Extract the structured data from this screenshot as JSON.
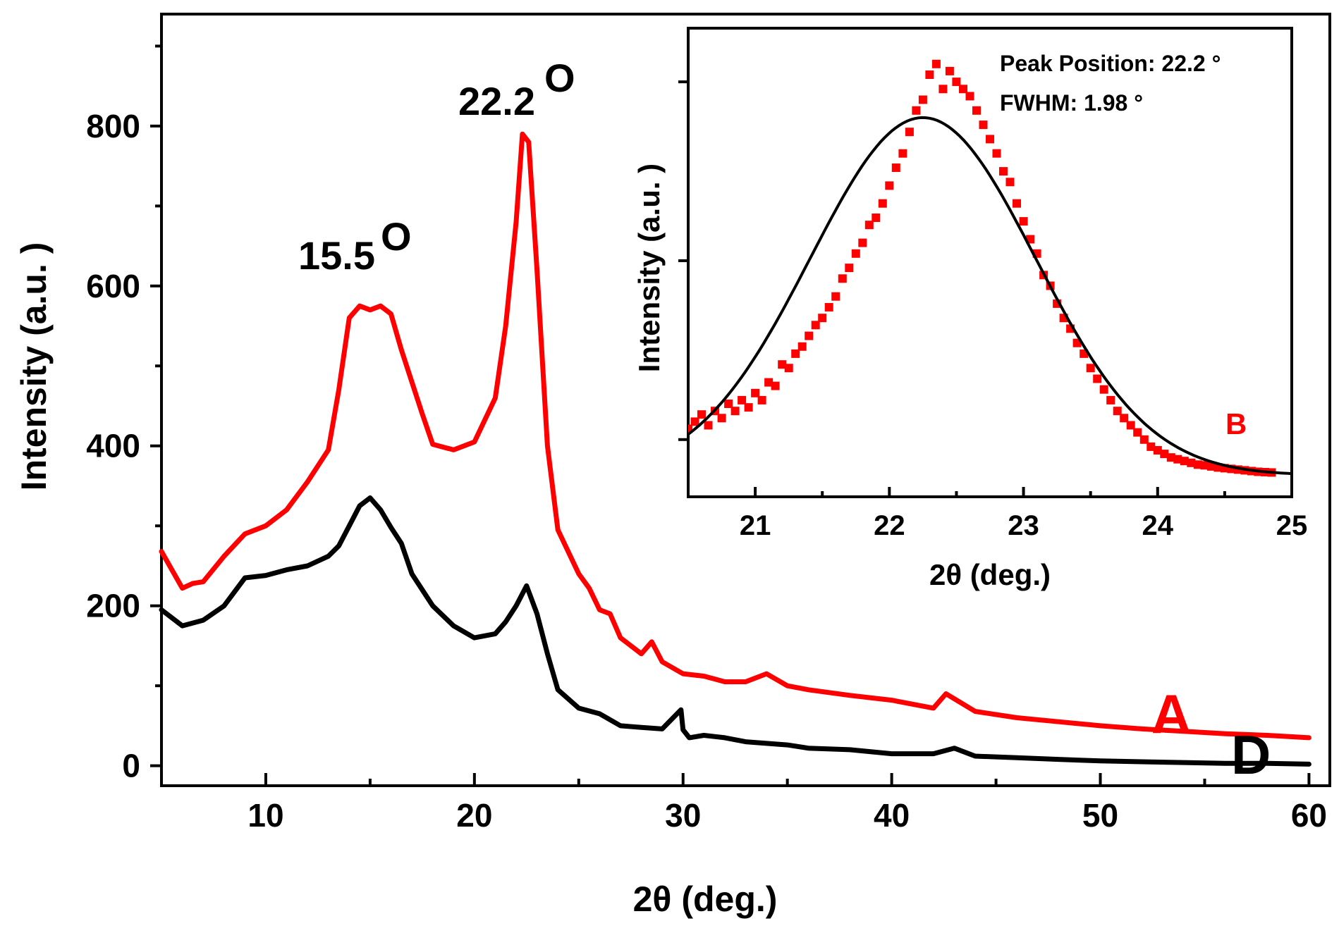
{
  "chart_data": [
    {
      "type": "line",
      "title": "",
      "xlabel": "2θ (deg.)",
      "ylabel": "Intensity (a.u. )",
      "xlim": [
        5,
        61
      ],
      "ylim": [
        -25,
        940
      ],
      "xticks": [
        10,
        20,
        30,
        40,
        50,
        60
      ],
      "yticks": [
        0,
        200,
        400,
        600,
        800
      ],
      "grid": false,
      "annotations": [
        {
          "text": "15.5",
          "superscript": "O",
          "x": 15.5,
          "y": 618
        },
        {
          "text": "22.2",
          "superscript": "O",
          "x": 22.2,
          "y": 820
        }
      ],
      "series": [
        {
          "name": "A",
          "color": "#ff0000",
          "x": [
            5,
            5.5,
            6,
            6.5,
            7,
            8,
            9,
            10,
            11,
            12,
            13,
            13.5,
            14,
            14.5,
            15,
            15.5,
            16,
            16.5,
            17,
            17.5,
            18,
            19,
            20,
            21,
            21.5,
            22,
            22.3,
            22.6,
            23,
            23.5,
            24,
            25,
            25.5,
            26,
            26.5,
            27,
            28,
            28.5,
            29,
            30,
            31,
            32,
            33,
            34,
            35,
            36,
            38,
            40,
            42,
            42.6,
            44,
            46,
            48,
            50,
            52,
            54,
            56,
            58,
            60
          ],
          "values": [
            268,
            245,
            222,
            228,
            230,
            262,
            290,
            300,
            320,
            355,
            395,
            470,
            560,
            575,
            570,
            575,
            565,
            520,
            480,
            440,
            402,
            395,
            405,
            460,
            550,
            680,
            790,
            780,
            620,
            400,
            295,
            240,
            222,
            195,
            190,
            160,
            140,
            155,
            130,
            115,
            112,
            105,
            105,
            115,
            100,
            95,
            88,
            82,
            72,
            90,
            68,
            60,
            55,
            50,
            46,
            43,
            40,
            38,
            35
          ]
        },
        {
          "name": "D",
          "color": "#000000",
          "x": [
            5,
            6,
            7,
            8,
            9,
            10,
            11,
            12,
            13,
            13.5,
            14,
            14.5,
            15,
            15.5,
            16,
            16.5,
            17,
            18,
            19,
            20,
            21,
            21.5,
            22,
            22.5,
            23,
            23.5,
            24,
            25,
            26,
            27,
            28,
            29,
            29.9,
            30,
            30.3,
            31,
            32,
            33,
            34,
            35,
            36,
            38,
            40,
            42,
            43,
            44,
            46,
            48,
            50,
            52,
            54,
            56,
            58,
            60
          ],
          "values": [
            195,
            175,
            182,
            200,
            235,
            238,
            245,
            250,
            262,
            275,
            300,
            325,
            335,
            320,
            298,
            278,
            240,
            200,
            175,
            160,
            165,
            180,
            200,
            225,
            190,
            140,
            95,
            72,
            65,
            50,
            48,
            46,
            70,
            45,
            35,
            38,
            35,
            30,
            28,
            26,
            22,
            20,
            15,
            15,
            22,
            12,
            10,
            8,
            6,
            5,
            4,
            3,
            3,
            2
          ]
        }
      ],
      "legend": [
        {
          "label": "A",
          "color": "#ff0000"
        },
        {
          "label": "D",
          "color": "#000000"
        }
      ]
    },
    {
      "type": "scatter",
      "title": "",
      "xlabel": "2θ (deg.)",
      "ylabel": "Intensity (a.u. )",
      "xlim": [
        20.5,
        25
      ],
      "ylim": [
        -0.06,
        1.25
      ],
      "xticks": [
        21,
        22,
        23,
        24,
        25
      ],
      "ytick_values": [
        0.1,
        0.6,
        1.1
      ],
      "annotations": [
        {
          "text": "Peak Position: 22.2 °"
        },
        {
          "text": "FWHM: 1.98 °"
        }
      ],
      "series": [
        {
          "name": "B",
          "color": "#ff0000",
          "marker": "square",
          "x": [
            20.5,
            20.55,
            20.6,
            20.65,
            20.7,
            20.75,
            20.8,
            20.85,
            20.9,
            20.95,
            21.0,
            21.05,
            21.1,
            21.15,
            21.2,
            21.25,
            21.3,
            21.35,
            21.4,
            21.45,
            21.5,
            21.55,
            21.6,
            21.65,
            21.7,
            21.75,
            21.8,
            21.85,
            21.9,
            21.95,
            22.0,
            22.05,
            22.1,
            22.15,
            22.2,
            22.25,
            22.3,
            22.35,
            22.4,
            22.45,
            22.5,
            22.55,
            22.6,
            22.65,
            22.7,
            22.75,
            22.8,
            22.85,
            22.9,
            22.95,
            23.0,
            23.05,
            23.1,
            23.15,
            23.2,
            23.25,
            23.3,
            23.35,
            23.4,
            23.45,
            23.5,
            23.55,
            23.6,
            23.65,
            23.7,
            23.75,
            23.8,
            23.85,
            23.9,
            23.95,
            24.0,
            24.05,
            24.1,
            24.15,
            24.2,
            24.25,
            24.3,
            24.35,
            24.4,
            24.45,
            24.5,
            24.55,
            24.6,
            24.65,
            24.7,
            24.75,
            24.8,
            24.85
          ],
          "values": [
            0.13,
            0.15,
            0.17,
            0.14,
            0.18,
            0.16,
            0.2,
            0.18,
            0.21,
            0.19,
            0.23,
            0.21,
            0.26,
            0.25,
            0.31,
            0.3,
            0.34,
            0.36,
            0.39,
            0.42,
            0.44,
            0.47,
            0.5,
            0.55,
            0.58,
            0.62,
            0.65,
            0.7,
            0.72,
            0.76,
            0.81,
            0.86,
            0.9,
            0.96,
            1.02,
            1.05,
            1.12,
            1.15,
            1.08,
            1.13,
            1.1,
            1.08,
            1.06,
            1.02,
            0.98,
            0.94,
            0.9,
            0.85,
            0.82,
            0.76,
            0.71,
            0.66,
            0.62,
            0.56,
            0.53,
            0.48,
            0.44,
            0.41,
            0.37,
            0.34,
            0.3,
            0.27,
            0.24,
            0.21,
            0.18,
            0.16,
            0.14,
            0.12,
            0.1,
            0.08,
            0.07,
            0.06,
            0.05,
            0.045,
            0.04,
            0.035,
            0.03,
            0.028,
            0.025,
            0.022,
            0.02,
            0.018,
            0.016,
            0.014,
            0.012,
            0.01,
            0.009,
            0.008
          ]
        },
        {
          "name": "Gaussian fit",
          "color": "#000000",
          "type": "line",
          "center": 22.25,
          "fwhm": 1.98,
          "amplitude": 1.0
        }
      ],
      "legend": [
        {
          "label": "B",
          "color": "#ff0000"
        }
      ]
    }
  ]
}
